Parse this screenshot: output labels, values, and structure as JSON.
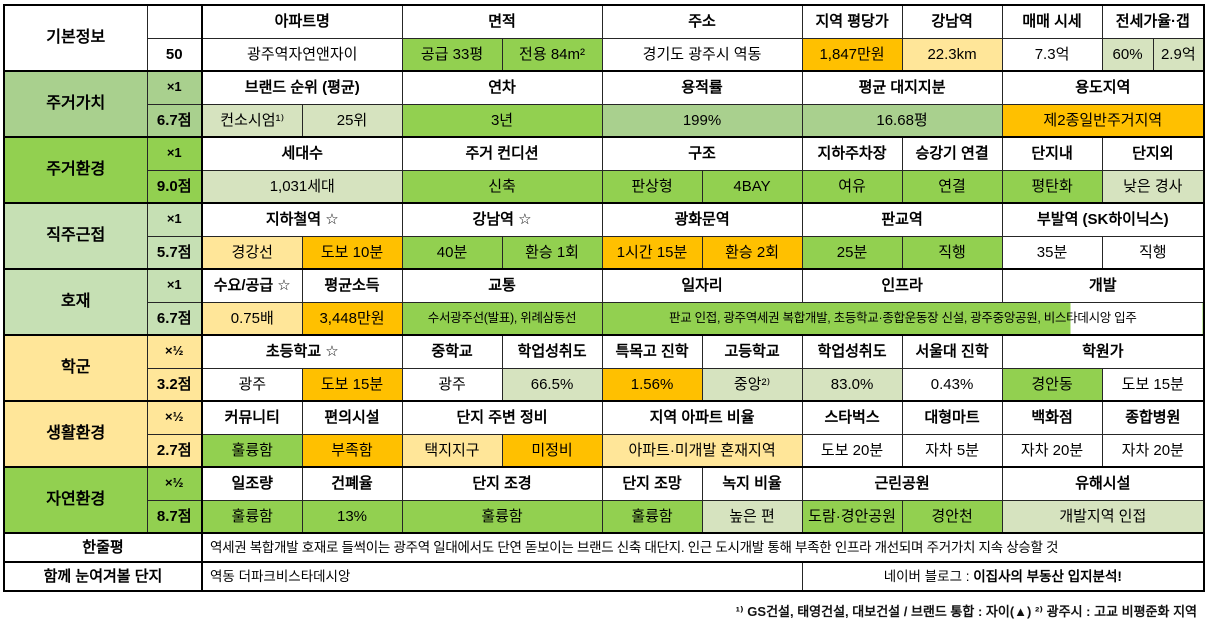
{
  "colors": {
    "bright_green": "#92D050",
    "medium_green": "#A9D08E",
    "pale_green": "#C6E0B4",
    "value_green": "#D6E3BF",
    "light_yellow": "#FFE699",
    "orange": "#FFC000",
    "white": "#FFFFFF"
  },
  "table": {
    "blocks": [
      {
        "category": "기본정보",
        "multiplier": "",
        "score": "50",
        "color": "#FFFFFF",
        "headers": [
          {
            "text": "아파트명",
            "span": 2
          },
          {
            "text": "면적",
            "span": 2
          },
          {
            "text": "주소",
            "span": 2
          },
          {
            "text": "지역 평당가",
            "span": 1
          },
          {
            "text": "강남역",
            "span": 1
          },
          {
            "text": "매매 시세",
            "span": 1
          },
          {
            "text": "전세가율·갭",
            "span": 2
          }
        ],
        "values": [
          {
            "text": "광주역자연앤자이",
            "span": 2,
            "bg": "#FFFFFF"
          },
          {
            "text": "공급 33평",
            "span": 1,
            "bg": "#92D050"
          },
          {
            "text": "전용 84m²",
            "span": 1,
            "bg": "#92D050"
          },
          {
            "text": "경기도 광주시 역동",
            "span": 2,
            "bg": "#FFFFFF"
          },
          {
            "text": "1,847만원",
            "span": 1,
            "bg": "#FFC000"
          },
          {
            "text": "22.3km",
            "span": 1,
            "bg": "#FFE699"
          },
          {
            "text": "7.3억",
            "span": 1,
            "bg": "#FFFFFF"
          },
          {
            "text": "60%",
            "span": 1,
            "bg": "#D6E3BF"
          },
          {
            "text": "2.9억",
            "span": 1,
            "bg": "#D6E3BF"
          }
        ]
      },
      {
        "category": "주거가치",
        "multiplier": "×1",
        "score": "6.7점",
        "color": "#A9D08E",
        "headers": [
          {
            "text": "브랜드 순위 (평균)",
            "span": 2
          },
          {
            "text": "연차",
            "span": 2
          },
          {
            "text": "용적률",
            "span": 2
          },
          {
            "text": "평균 대지지분",
            "span": 2
          },
          {
            "text": "용도지역",
            "span": 3
          }
        ],
        "values": [
          {
            "text": "컨소시엄¹⁾",
            "span": 1,
            "bg": "#D6E3BF"
          },
          {
            "text": "25위",
            "span": 1,
            "bg": "#D6E3BF"
          },
          {
            "text": "3년",
            "span": 2,
            "bg": "#92D050"
          },
          {
            "text": "199%",
            "span": 2,
            "bg": "#A9D08E"
          },
          {
            "text": "16.68평",
            "span": 2,
            "bg": "#A9D08E"
          },
          {
            "text": "제2종일반주거지역",
            "span": 3,
            "bg": "#FFC000"
          }
        ]
      },
      {
        "category": "주거환경",
        "multiplier": "×1",
        "score": "9.0점",
        "color": "#92D050",
        "headers": [
          {
            "text": "세대수",
            "span": 2
          },
          {
            "text": "주거 컨디션",
            "span": 2
          },
          {
            "text": "구조",
            "span": 2
          },
          {
            "text": "지하주차장",
            "span": 1
          },
          {
            "text": "승강기 연결",
            "span": 1
          },
          {
            "text": "단지내",
            "span": 1
          },
          {
            "text": "단지외",
            "span": 2
          }
        ],
        "values": [
          {
            "text": "1,031세대",
            "span": 2,
            "bg": "#D6E3BF"
          },
          {
            "text": "신축",
            "span": 2,
            "bg": "#92D050"
          },
          {
            "text": "판상형",
            "span": 1,
            "bg": "#92D050"
          },
          {
            "text": "4BAY",
            "span": 1,
            "bg": "#92D050"
          },
          {
            "text": "여유",
            "span": 1,
            "bg": "#92D050"
          },
          {
            "text": "연결",
            "span": 1,
            "bg": "#92D050"
          },
          {
            "text": "평탄화",
            "span": 1,
            "bg": "#92D050"
          },
          {
            "text": "낮은 경사",
            "span": 2,
            "bg": "#D6E3BF"
          }
        ]
      },
      {
        "category": "직주근접",
        "multiplier": "×1",
        "score": "5.7점",
        "color": "#C6E0B4",
        "headers": [
          {
            "text": "지하철역 ☆",
            "span": 2
          },
          {
            "text": "강남역 ☆",
            "span": 2
          },
          {
            "text": "광화문역",
            "span": 2
          },
          {
            "text": "판교역",
            "span": 2
          },
          {
            "text": "부발역 (SK하이닉스)",
            "span": 3
          }
        ],
        "values": [
          {
            "text": "경강선",
            "span": 1,
            "bg": "#FFE699"
          },
          {
            "text": "도보 10분",
            "span": 1,
            "bg": "#FFC000"
          },
          {
            "text": "40분",
            "span": 1,
            "bg": "#92D050"
          },
          {
            "text": "환승 1회",
            "span": 1,
            "bg": "#92D050"
          },
          {
            "text": "1시간 15분",
            "span": 1,
            "bg": "#FFC000"
          },
          {
            "text": "환승 2회",
            "span": 1,
            "bg": "#FFC000"
          },
          {
            "text": "25분",
            "span": 1,
            "bg": "#92D050"
          },
          {
            "text": "직행",
            "span": 1,
            "bg": "#92D050"
          },
          {
            "text": "35분",
            "span": 1,
            "bg": "#FFFFFF"
          },
          {
            "text": "직행",
            "span": 2,
            "bg": "#FFFFFF"
          }
        ]
      },
      {
        "category": "호재",
        "multiplier": "×1",
        "score": "6.7점",
        "color": "#C6E0B4",
        "headers": [
          {
            "text": "수요/공급 ☆",
            "span": 1
          },
          {
            "text": "평균소득",
            "span": 1
          },
          {
            "text": "교통",
            "span": 2
          },
          {
            "text": "일자리",
            "span": 2
          },
          {
            "text": "인프라",
            "span": 2
          },
          {
            "text": "개발",
            "span": 3
          }
        ],
        "values": [
          {
            "text": "0.75배",
            "span": 1,
            "bg": "#FFE699"
          },
          {
            "text": "3,448만원",
            "span": 1,
            "bg": "#FFC000"
          },
          {
            "text": "수서광주선(발표), 위례삼동선",
            "span": 2,
            "bg": "#92D050"
          },
          {
            "text": "판교 인접, 광주역세권 복합개발, 초등학교·종합운동장 신설, 광주중앙공원, 비스타데시앙 입주",
            "span": 7,
            "bg": "#92D050",
            "bg2": "#FFFFFF",
            "split": 78
          }
        ]
      },
      {
        "category": "학군",
        "multiplier": "×½",
        "score": "3.2점",
        "color": "#FFE699",
        "headers": [
          {
            "text": "초등학교 ☆",
            "span": 2
          },
          {
            "text": "중학교",
            "span": 1
          },
          {
            "text": "학업성취도",
            "span": 1
          },
          {
            "text": "특목고 진학",
            "span": 1
          },
          {
            "text": "고등학교",
            "span": 1
          },
          {
            "text": "학업성취도",
            "span": 1
          },
          {
            "text": "서울대 진학",
            "span": 1
          },
          {
            "text": "학원가",
            "span": 3
          }
        ],
        "values": [
          {
            "text": "광주",
            "span": 1,
            "bg": "#FFFFFF"
          },
          {
            "text": "도보 15분",
            "span": 1,
            "bg": "#FFC000"
          },
          {
            "text": "광주",
            "span": 1,
            "bg": "#FFFFFF"
          },
          {
            "text": "66.5%",
            "span": 1,
            "bg": "#D6E3BF"
          },
          {
            "text": "1.56%",
            "span": 1,
            "bg": "#FFC000"
          },
          {
            "text": "중앙²⁾",
            "span": 1,
            "bg": "#D6E3BF"
          },
          {
            "text": "83.0%",
            "span": 1,
            "bg": "#D6E3BF"
          },
          {
            "text": "0.43%",
            "span": 1,
            "bg": "#FFFFFF"
          },
          {
            "text": "경안동",
            "span": 1,
            "bg": "#92D050"
          },
          {
            "text": "도보 15분",
            "span": 2,
            "bg": "#FFFFFF"
          }
        ]
      },
      {
        "category": "생활환경",
        "multiplier": "×½",
        "score": "2.7점",
        "color": "#FFE699",
        "headers": [
          {
            "text": "커뮤니티",
            "span": 1
          },
          {
            "text": "편의시설",
            "span": 1
          },
          {
            "text": "단지 주변 정비",
            "span": 2
          },
          {
            "text": "지역 아파트 비율",
            "span": 2
          },
          {
            "text": "스타벅스",
            "span": 1
          },
          {
            "text": "대형마트",
            "span": 1
          },
          {
            "text": "백화점",
            "span": 1
          },
          {
            "text": "종합병원",
            "span": 2
          }
        ],
        "values": [
          {
            "text": "훌륭함",
            "span": 1,
            "bg": "#92D050"
          },
          {
            "text": "부족함",
            "span": 1,
            "bg": "#FFC000"
          },
          {
            "text": "택지지구",
            "span": 1,
            "bg": "#FFE699"
          },
          {
            "text": "미정비",
            "span": 1,
            "bg": "#FFC000"
          },
          {
            "text": "아파트·미개발 혼재지역",
            "span": 2,
            "bg": "#FFE699"
          },
          {
            "text": "도보 20분",
            "span": 1,
            "bg": "#FFFFFF"
          },
          {
            "text": "자차 5분",
            "span": 1,
            "bg": "#FFFFFF"
          },
          {
            "text": "자차 20분",
            "span": 1,
            "bg": "#FFFFFF"
          },
          {
            "text": "자차 20분",
            "span": 2,
            "bg": "#FFFFFF"
          }
        ]
      },
      {
        "category": "자연환경",
        "multiplier": "×½",
        "score": "8.7점",
        "color": "#92D050",
        "headers": [
          {
            "text": "일조량",
            "span": 1
          },
          {
            "text": "건폐율",
            "span": 1
          },
          {
            "text": "단지 조경",
            "span": 2
          },
          {
            "text": "단지 조망",
            "span": 1
          },
          {
            "text": "녹지 비율",
            "span": 1
          },
          {
            "text": "근린공원",
            "span": 2
          },
          {
            "text": "유해시설",
            "span": 3
          }
        ],
        "values": [
          {
            "text": "훌륭함",
            "span": 1,
            "bg": "#92D050"
          },
          {
            "text": "13%",
            "span": 1,
            "bg": "#92D050"
          },
          {
            "text": "훌륭함",
            "span": 2,
            "bg": "#92D050"
          },
          {
            "text": "훌륭함",
            "span": 1,
            "bg": "#92D050"
          },
          {
            "text": "높은 편",
            "span": 1,
            "bg": "#D6E3BF"
          },
          {
            "text": "도람·경안공원",
            "span": 1,
            "bg": "#92D050"
          },
          {
            "text": "경안천",
            "span": 1,
            "bg": "#92D050"
          },
          {
            "text": "개발지역 인접",
            "span": 3,
            "bg": "#D6E3BF"
          }
        ]
      }
    ],
    "summary_rows": [
      {
        "label": "한줄평",
        "cells": [
          {
            "text": "역세권 복합개발 호재로 들썩이는 광주역 일대에서도 단연 돋보이는 브랜드 신축 대단지. 인근 도시개발 통해 부족한 인프라 개선되며 주거가치 지속 상승할 것",
            "span": 11,
            "align": "left"
          }
        ]
      },
      {
        "label": "함께 눈여겨볼 단지",
        "cells": [
          {
            "text": "역동 더파크비스타데시앙",
            "span": 6,
            "align": "left"
          },
          {
            "prefix": "네이버 블로그 : ",
            "bold": "이집사의 부동산 입지분석!",
            "span": 5,
            "align": "center"
          }
        ]
      }
    ]
  },
  "footnote": "¹⁾ GS건설, 태영건설, 대보건설 / 브랜드 통합 : 자이(▲)   ²⁾ 광주시 : 고교 비평준화 지역"
}
